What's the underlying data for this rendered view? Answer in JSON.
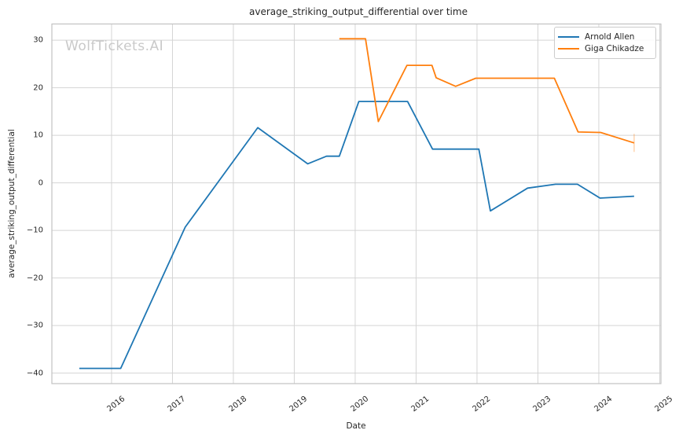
{
  "figure": {
    "watermark": "WolfTickets.AI"
  },
  "chart_data": {
    "type": "line",
    "title": "average_striking_output_differential over time",
    "xlabel": "Date",
    "ylabel": "average_striking_output_differential",
    "xlim": [
      2015.02,
      2025.02
    ],
    "ylim": [
      -42.2,
      33.4
    ],
    "grid": true,
    "legend_position": "upper right",
    "x_ticks": {
      "values": [
        2016,
        2017,
        2018,
        2019,
        2020,
        2021,
        2022,
        2023,
        2024,
        2025
      ],
      "labels": [
        "2016",
        "2017",
        "2018",
        "2019",
        "2020",
        "2021",
        "2022",
        "2023",
        "2024",
        "2025"
      ]
    },
    "y_ticks": {
      "values": [
        30,
        20,
        10,
        0,
        -10,
        -20,
        -30,
        -40
      ],
      "labels": [
        "30",
        "20",
        "10",
        "0",
        "−10",
        "−20",
        "−30",
        "−40"
      ]
    },
    "series": [
      {
        "name": "Arnold Allen",
        "color": "#1f77b4",
        "x": [
          2015.47,
          2016.15,
          2017.21,
          2018.4,
          2019.22,
          2019.53,
          2019.74,
          2020.06,
          2020.86,
          2021.27,
          2022.03,
          2022.22,
          2022.83,
          2023.29,
          2023.65,
          2024.02,
          2024.58
        ],
        "y": [
          -39.0,
          -39.0,
          -9.3,
          11.6,
          4.0,
          5.6,
          5.6,
          17.1,
          17.1,
          7.1,
          7.1,
          -5.9,
          -1.1,
          -0.3,
          -0.3,
          -3.2,
          -2.8
        ]
      },
      {
        "name": "Giga Chikadze",
        "color": "#ff7f0e",
        "x": [
          2019.74,
          2020.17,
          2020.38,
          2020.85,
          2021.26,
          2021.33,
          2021.65,
          2021.98,
          2023.27,
          2023.66,
          2024.03,
          2024.58
        ],
        "y": [
          30.3,
          30.3,
          12.9,
          24.7,
          24.7,
          22.1,
          20.3,
          22.0,
          22.0,
          10.7,
          10.6,
          8.4
        ],
        "end_whisker": {
          "x": 2024.58,
          "y_high": 10.3,
          "y_low": 6.5
        }
      }
    ],
    "colors": {
      "grid": "#d4d4d4",
      "spine": "#c2c2c2",
      "text": "#262626",
      "watermark": "#c9c9c9",
      "background": "#ffffff"
    }
  }
}
